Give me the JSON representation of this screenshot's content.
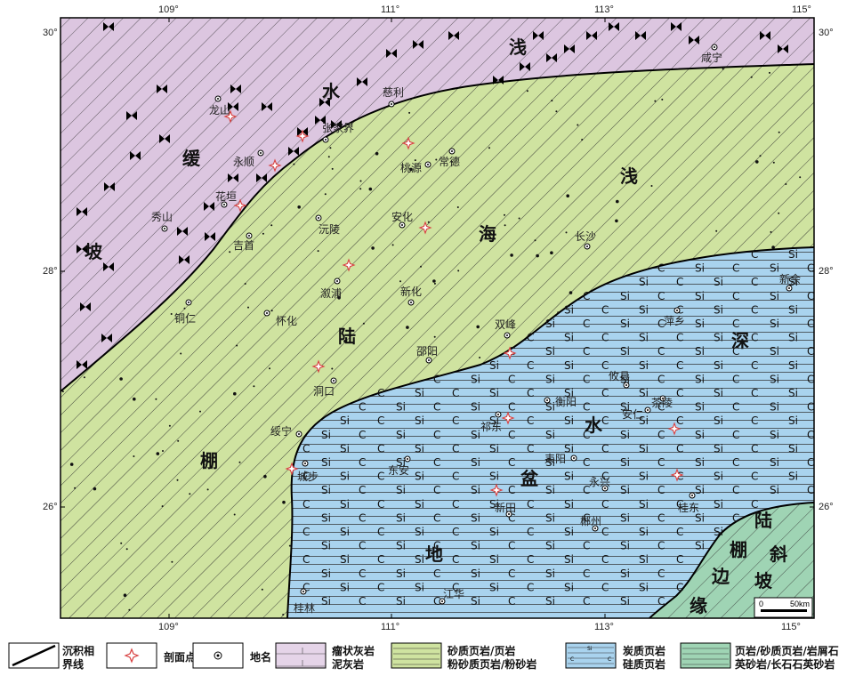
{
  "colors": {
    "slope": "#dcc6e0",
    "shelf": "#cfe3a0",
    "basin": "#a9d3ee",
    "marginal": "#9fd4b4",
    "hatch": "#2a2a2a",
    "symbol": "#d84040"
  },
  "axes": {
    "top_labels": [
      "109°",
      "111°",
      "113°",
      "115°"
    ],
    "bottom_labels": [
      "109°",
      "111°",
      "113°",
      "115°"
    ],
    "left_labels": [
      "30°",
      "28°",
      "26°"
    ],
    "right_labels": [
      "30°",
      "28°",
      "26°"
    ]
  },
  "facies_labels": {
    "slope": [
      "坡",
      "缓",
      "水",
      "浅"
    ],
    "shelf": [
      "棚",
      "陆",
      "海",
      "浅"
    ],
    "basin": [
      "地",
      "盆",
      "水",
      "深"
    ],
    "marginal": [
      "缘",
      "边",
      "棚",
      "陆",
      "斜",
      "坡"
    ]
  },
  "places": [
    {
      "name": "慈利",
      "icon": "town-icon"
    },
    {
      "name": "龙山",
      "icon": "town-icon"
    },
    {
      "name": "张家界",
      "icon": "town-icon"
    },
    {
      "name": "永顺",
      "icon": "town-icon"
    },
    {
      "name": "花垣",
      "icon": "town-icon"
    },
    {
      "name": "秀山",
      "icon": "town-icon"
    },
    {
      "name": "吉首",
      "icon": "town-icon"
    },
    {
      "name": "桃源",
      "icon": "town-icon"
    },
    {
      "name": "常德",
      "icon": "town-icon"
    },
    {
      "name": "沅陵",
      "icon": "town-icon"
    },
    {
      "name": "安化",
      "icon": "town-icon"
    },
    {
      "name": "长沙",
      "icon": "town-icon"
    },
    {
      "name": "溆浦",
      "icon": "town-icon"
    },
    {
      "name": "新化",
      "icon": "town-icon"
    },
    {
      "name": "铜仁",
      "icon": "town-icon"
    },
    {
      "name": "怀化",
      "icon": "town-icon"
    },
    {
      "name": "双峰",
      "icon": "town-icon"
    },
    {
      "name": "邵阳",
      "icon": "town-icon"
    },
    {
      "name": "洞口",
      "icon": "town-icon"
    },
    {
      "name": "绥宁",
      "icon": "town-icon"
    },
    {
      "name": "城步",
      "icon": "town-icon"
    },
    {
      "name": "衡阳",
      "icon": "town-icon"
    },
    {
      "name": "祁东",
      "icon": "town-icon"
    },
    {
      "name": "东安",
      "icon": "town-icon"
    },
    {
      "name": "耒阳",
      "icon": "town-icon"
    },
    {
      "name": "新田",
      "icon": "town-icon"
    },
    {
      "name": "永兴",
      "icon": "town-icon"
    },
    {
      "name": "郴州",
      "icon": "town-icon"
    },
    {
      "name": "攸县",
      "icon": "town-icon"
    },
    {
      "name": "安仁",
      "icon": "town-icon"
    },
    {
      "name": "茶陵",
      "icon": "town-icon"
    },
    {
      "name": "萍乡",
      "icon": "town-icon"
    },
    {
      "name": "新余",
      "icon": "town-icon"
    },
    {
      "name": "桂东",
      "icon": "town-icon"
    },
    {
      "name": "桂林",
      "icon": "town-icon"
    },
    {
      "name": "江华",
      "icon": "town-icon"
    },
    {
      "name": "咸宁",
      "icon": "town-icon"
    }
  ],
  "basin_symbols": [
    "Si",
    "C"
  ],
  "scale_bar": {
    "start": "0",
    "end": "50km"
  },
  "legend": [
    {
      "label": "沉积相\n界线",
      "symbol": "boundary"
    },
    {
      "label": "剖面点",
      "symbol": "section"
    },
    {
      "label": "地名",
      "symbol": "place"
    },
    {
      "label": "瘤状灰岩\n泥灰岩",
      "symbol": "slope"
    },
    {
      "label": "砂质页岩/页岩\n粉砂质页岩/粉砂岩",
      "symbol": "shelf"
    },
    {
      "label": "炭质页岩\n硅质页岩",
      "symbol": "basin"
    },
    {
      "label": "页岩/砂质页岩/岩屑石\n英砂岩/长石石英砂岩",
      "symbol": "marginal"
    }
  ]
}
